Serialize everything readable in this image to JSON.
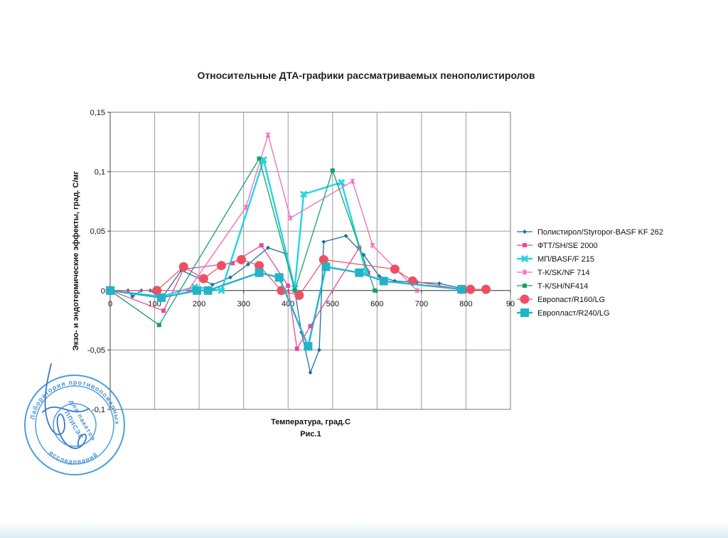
{
  "chart_data": {
    "type": "line",
    "title": "Относительные ДТА-графики рассматриваемых пенополистиролов",
    "xlabel": "Температура, град.С",
    "ylabel": "Экзо- и эндотермические эффекты, град. С/мг",
    "caption": "Рис.1",
    "xlim": [
      0,
      900
    ],
    "ylim": [
      -0.1,
      0.15
    ],
    "x_ticks": [
      "0",
      "100",
      "200",
      "300",
      "400",
      "500",
      "600",
      "700",
      "800",
      "90"
    ],
    "x_tick_values": [
      0,
      100,
      200,
      300,
      400,
      500,
      600,
      700,
      800,
      900
    ],
    "y_ticks": [
      "0,15",
      "0,1",
      "0,05",
      "0",
      "-0,05",
      "-0,1"
    ],
    "y_tick_values": [
      0.15,
      0.1,
      0.05,
      0,
      -0.05,
      -0.1
    ],
    "grid": true,
    "legend_position": "right",
    "series": [
      {
        "name": "Полистирол/Styropor-BASF KF 262",
        "color": "#1f6fa6",
        "marker": "diamond",
        "points": [
          [
            0,
            0
          ],
          [
            40,
            0
          ],
          [
            50,
            -0.005
          ],
          [
            70,
            0
          ],
          [
            90,
            0
          ],
          [
            115,
            -0.007
          ],
          [
            160,
            0.017
          ],
          [
            230,
            0.005
          ],
          [
            270,
            0.011
          ],
          [
            310,
            0.022
          ],
          [
            355,
            0.036
          ],
          [
            395,
            0.031
          ],
          [
            415,
            0
          ],
          [
            430,
            -0.035
          ],
          [
            450,
            -0.069
          ],
          [
            470,
            -0.05
          ],
          [
            480,
            0.041
          ],
          [
            530,
            0.046
          ],
          [
            570,
            0.03
          ],
          [
            605,
            0.012
          ],
          [
            640,
            0.008
          ],
          [
            690,
            0.007
          ],
          [
            740,
            0.006
          ],
          [
            800,
            0.001
          ]
        ]
      },
      {
        "name": "ФТТ/SH/SE 2000",
        "color": "#e8489a",
        "marker": "square",
        "points": [
          [
            0,
            0
          ],
          [
            120,
            -0.017
          ],
          [
            165,
            0.018
          ],
          [
            275,
            0.023
          ],
          [
            340,
            0.038
          ],
          [
            400,
            0.004
          ],
          [
            420,
            -0.049
          ],
          [
            450,
            -0.03
          ],
          [
            560,
            0.036
          ],
          [
            580,
            0.015
          ]
        ]
      },
      {
        "name": "МП/BASF/F 215",
        "color": "#26d3e4",
        "marker": "x",
        "points": [
          [
            0,
            0
          ],
          [
            115,
            -0.005
          ],
          [
            190,
            0.003
          ],
          [
            250,
            0
          ],
          [
            345,
            0.11
          ],
          [
            415,
            0.002
          ],
          [
            435,
            0.081
          ],
          [
            520,
            0.091
          ],
          [
            575,
            0.016
          ]
        ]
      },
      {
        "name": "Т-К/SK/NF 714",
        "color": "#ee6ab8",
        "marker": "star",
        "points": [
          [
            0,
            0
          ],
          [
            105,
            0
          ],
          [
            175,
            0
          ],
          [
            305,
            0.07
          ],
          [
            355,
            0.131
          ],
          [
            405,
            0.061
          ],
          [
            545,
            0.092
          ],
          [
            590,
            0.038
          ],
          [
            690,
            0
          ]
        ]
      },
      {
        "name": "Т-К/SH/NF414",
        "color": "#13a36a",
        "marker": "square",
        "points": [
          [
            0,
            0
          ],
          [
            110,
            -0.029
          ],
          [
            335,
            0.111
          ],
          [
            415,
            0
          ],
          [
            500,
            0.101
          ],
          [
            595,
            0
          ]
        ]
      },
      {
        "name": "Европаст/R160/LG",
        "color": "#ef4f62",
        "marker": "circle",
        "points": [
          [
            0,
            0
          ],
          [
            105,
            0
          ],
          [
            165,
            0.02
          ],
          [
            210,
            0.01
          ],
          [
            250,
            0.021
          ],
          [
            295,
            0.026
          ],
          [
            335,
            0.021
          ],
          [
            385,
            0
          ],
          [
            425,
            -0.004
          ],
          [
            480,
            0.026
          ],
          [
            640,
            0.018
          ],
          [
            680,
            0.008
          ],
          [
            790,
            0.001
          ],
          [
            810,
            0.001
          ],
          [
            845,
            0.001
          ]
        ]
      },
      {
        "name": "Европласт/R240/LG",
        "color": "#22b3c8",
        "marker": "bigsquare",
        "points": [
          [
            0,
            0
          ],
          [
            115,
            -0.006
          ],
          [
            195,
            0
          ],
          [
            220,
            0
          ],
          [
            335,
            0.015
          ],
          [
            380,
            0.011
          ],
          [
            445,
            -0.047
          ],
          [
            485,
            0.02
          ],
          [
            560,
            0.015
          ],
          [
            615,
            0.008
          ],
          [
            790,
            0.001
          ]
        ]
      }
    ]
  },
  "stamp": {
    "texts": [
      "Лаборатория противопожарных",
      "исследований",
      "ППИСЭС",
      "для пакетов"
    ]
  }
}
